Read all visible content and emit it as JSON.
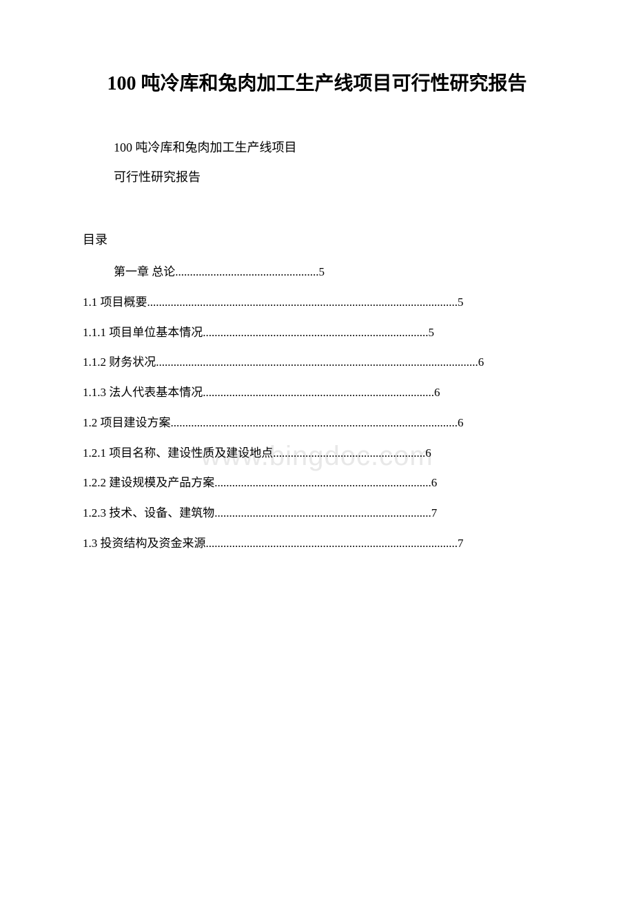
{
  "document": {
    "title": "100 吨冷库和兔肉加工生产线项目可行性研究报告",
    "subtitle_line1": "100 吨冷库和兔肉加工生产线项目",
    "subtitle_line2": "可行性研究报告",
    "toc_label": "目录",
    "watermark_text": "www.bingdoc.com",
    "watermark_color": "#e8e8e8",
    "text_color": "#000000",
    "background_color": "#ffffff",
    "title_fontsize": 28,
    "body_fontsize": 17,
    "toc_entries": [
      {
        "text": "第一章 总论.................................................5"
      },
      {
        "text": "1.1 项目概要..........................................................................................................5"
      },
      {
        "text": "1.1.1 项目单位基本情况.............................................................................5"
      },
      {
        "text": "1.1.2 财务状况..............................................................................................................6"
      },
      {
        "text": "1.1.3 法人代表基本情况...............................................................................6"
      },
      {
        "text": "1.2 项目建设方案..................................................................................................6"
      },
      {
        "text": "1.2.1 项目名称、建设性质及建设地点....................................................6"
      },
      {
        "text": "1.2.2 建设规模及产品方案..........................................................................6"
      },
      {
        "text": "1.2.3 技术、设备、建筑物..........................................................................7"
      },
      {
        "text": "1.3 投资结构及资金来源......................................................................................7"
      }
    ]
  }
}
